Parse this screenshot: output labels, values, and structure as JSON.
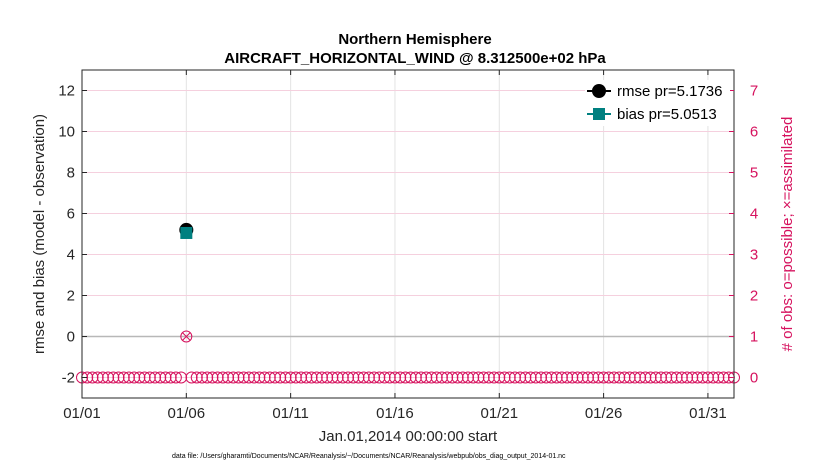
{
  "chart_data": {
    "type": "line",
    "title": "Northern Hemisphere",
    "subtitle": "AIRCRAFT_HORIZONTAL_WIND @ 8.312500e+02 hPa",
    "xlabel": "Jan.01,2014 00:00:00 start",
    "ylabel": "rmse and bias (model - observation)",
    "y2label": "# of obs: o=possible; ×=assimilated",
    "footnote": "data file: /Users/gharamti/Documents/NCAR/Reanalysis/~/Documents/NCAR/Reanalysis/webpub/obs_diag_output_2014-01.nc",
    "x_ticks": [
      "01/01",
      "01/06",
      "01/11",
      "01/16",
      "01/21",
      "01/26",
      "01/31"
    ],
    "x_tick_days": [
      1,
      6,
      11,
      16,
      21,
      26,
      31
    ],
    "xlim": [
      1,
      32.25
    ],
    "ylim": [
      -3,
      13
    ],
    "y_ticks": [
      -2,
      0,
      2,
      4,
      6,
      8,
      10,
      12
    ],
    "y2lim": [
      -0.5,
      7.5
    ],
    "y2_ticks": [
      0,
      1,
      2,
      3,
      4,
      5,
      6,
      7
    ],
    "grid": true,
    "legend_position": "top-right",
    "series": [
      {
        "name": "rmse pr=5.1736",
        "color": "#000000",
        "marker": "circle",
        "x": [
          6
        ],
        "y": [
          5.2
        ]
      },
      {
        "name": "bias pr=5.0513",
        "color": "#008080",
        "marker": "square",
        "x": [
          6
        ],
        "y": [
          5.05
        ]
      }
    ],
    "obs_possible": {
      "color": "#d6125e",
      "days": [
        1.0,
        1.25,
        1.5,
        1.75,
        2.0,
        2.25,
        2.5,
        2.75,
        3.0,
        3.25,
        3.5,
        3.75,
        4.0,
        4.25,
        4.5,
        4.75,
        5.0,
        5.25,
        5.5,
        5.75,
        6.0,
        6.25,
        6.5,
        6.75,
        7.0,
        7.25,
        7.5,
        7.75,
        8.0,
        8.25,
        8.5,
        8.75,
        9.0,
        9.25,
        9.5,
        9.75,
        10.0,
        10.25,
        10.5,
        10.75,
        11.0,
        11.25,
        11.5,
        11.75,
        12.0,
        12.25,
        12.5,
        12.75,
        13.0,
        13.25,
        13.5,
        13.75,
        14.0,
        14.25,
        14.5,
        14.75,
        15.0,
        15.25,
        15.5,
        15.75,
        16.0,
        16.25,
        16.5,
        16.75,
        17.0,
        17.25,
        17.5,
        17.75,
        18.0,
        18.25,
        18.5,
        18.75,
        19.0,
        19.25,
        19.5,
        19.75,
        20.0,
        20.25,
        20.5,
        20.75,
        21.0,
        21.25,
        21.5,
        21.75,
        22.0,
        22.25,
        22.5,
        22.75,
        23.0,
        23.25,
        23.5,
        23.75,
        24.0,
        24.25,
        24.5,
        24.75,
        25.0,
        25.25,
        25.5,
        25.75,
        26.0,
        26.25,
        26.5,
        26.75,
        27.0,
        27.25,
        27.5,
        27.75,
        28.0,
        28.25,
        28.5,
        28.75,
        29.0,
        29.25,
        29.5,
        29.75,
        30.0,
        30.25,
        30.5,
        30.75,
        31.0,
        31.25,
        31.5,
        31.75,
        32.0,
        32.25
      ],
      "counts": [
        0,
        0,
        0,
        0,
        0,
        0,
        0,
        0,
        0,
        0,
        0,
        0,
        0,
        0,
        0,
        0,
        0,
        0,
        0,
        0,
        1,
        0,
        0,
        0,
        0,
        0,
        0,
        0,
        0,
        0,
        0,
        0,
        0,
        0,
        0,
        0,
        0,
        0,
        0,
        0,
        0,
        0,
        0,
        0,
        0,
        0,
        0,
        0,
        0,
        0,
        0,
        0,
        0,
        0,
        0,
        0,
        0,
        0,
        0,
        0,
        0,
        0,
        0,
        0,
        0,
        0,
        0,
        0,
        0,
        0,
        0,
        0,
        0,
        0,
        0,
        0,
        0,
        0,
        0,
        0,
        0,
        0,
        0,
        0,
        0,
        0,
        0,
        0,
        0,
        0,
        0,
        0,
        0,
        0,
        0,
        0,
        0,
        0,
        0,
        0,
        0,
        0,
        0,
        0,
        0,
        0,
        0,
        0,
        0,
        0,
        0,
        0,
        0,
        0,
        0,
        0,
        0,
        0,
        0,
        0,
        0,
        0,
        0,
        0,
        0,
        0
      ]
    },
    "obs_assimilated": {
      "color": "#d6125e",
      "days": [
        6.0
      ],
      "counts": [
        1
      ]
    }
  }
}
